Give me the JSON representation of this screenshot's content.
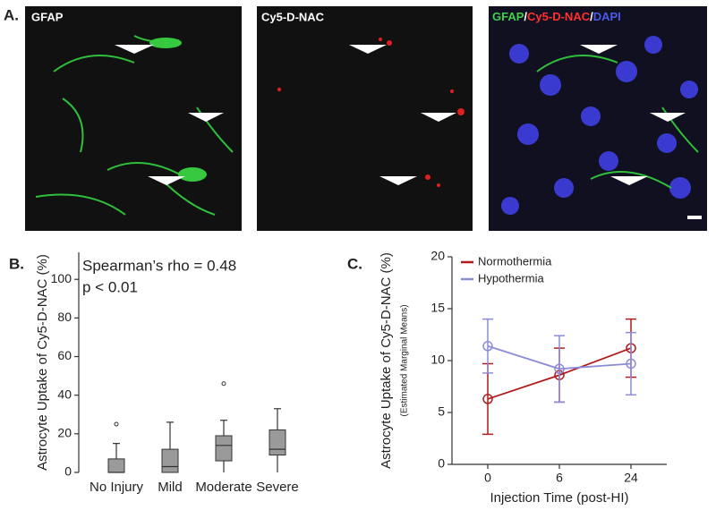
{
  "figure_a": {
    "panel_label": "A.",
    "image_labels": [
      "GFAP",
      "Cy5-D-NAC"
    ],
    "merge_label_parts": [
      "GFAP",
      "/",
      "Cy5-D-NAC",
      "/",
      "DAPI"
    ]
  },
  "chart_data": [
    {
      "type": "box",
      "panel_label": "B.",
      "y_label": "Astrocyte Uptake of Cy5-D-NAC (%)",
      "annotations": [
        "Spearman’s rho = 0.48",
        "p < 0.01"
      ],
      "categories": [
        "No Injury",
        "Mild",
        "Moderate",
        "Severe"
      ],
      "color": "#9a9a9a",
      "boxes": [
        {
          "min": 0,
          "q1": 0,
          "median": 0,
          "q3": 7,
          "max": 15,
          "outliers": [
            25
          ]
        },
        {
          "min": 0,
          "q1": 0,
          "median": 3,
          "q3": 12,
          "max": 26,
          "outliers": []
        },
        {
          "min": 0,
          "q1": 6,
          "median": 14,
          "q3": 19,
          "max": 27,
          "outliers": [
            46
          ]
        },
        {
          "min": 0,
          "q1": 9,
          "median": 12,
          "q3": 22,
          "max": 33,
          "outliers": []
        }
      ],
      "ylim": [
        0,
        114
      ],
      "yticks": [
        0,
        20,
        40,
        60,
        80,
        100
      ]
    },
    {
      "type": "line",
      "panel_label": "C.",
      "y_label": "Astrocyte Uptake of Cy5-D-NAC (%)",
      "y_sublabel": "(Estimated Marginal Means)",
      "x_label": "Injection Time  (post-HI)",
      "categories": [
        "0",
        "6",
        "24"
      ],
      "legend": "top left",
      "series": [
        {
          "name": "Normothermia",
          "color": "#b01c1c",
          "values": [
            6.3,
            8.6,
            11.2
          ],
          "errors": [
            3.4,
            2.6,
            2.8
          ]
        },
        {
          "name": "Hypothermia",
          "color": "#8c8cd8",
          "values": [
            11.4,
            9.2,
            9.7
          ],
          "errors": [
            2.6,
            3.2,
            3.0
          ]
        }
      ],
      "ylim": [
        0,
        20
      ],
      "yticks": [
        0,
        5,
        10,
        15,
        20
      ]
    }
  ]
}
